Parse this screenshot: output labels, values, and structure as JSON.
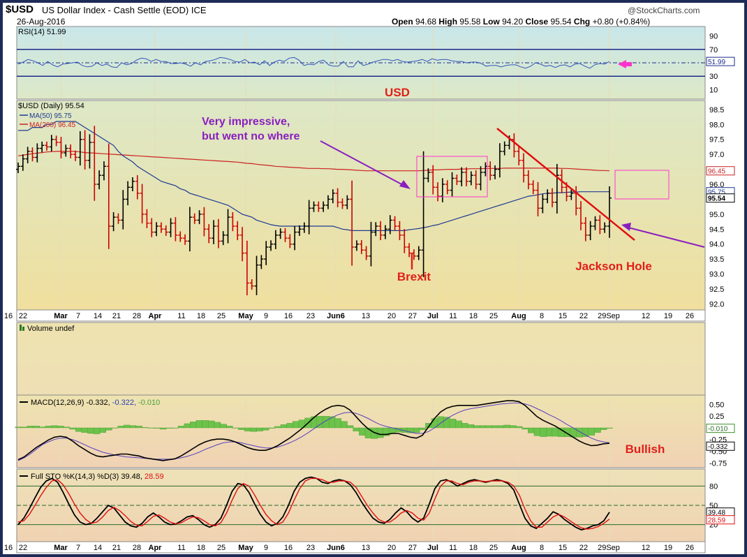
{
  "header": {
    "symbol": "$USD",
    "description": "US Dollar Index - Cash Settle (EOD) ICE",
    "date": "26-Aug-2016",
    "watermark": "@StockCharts.com",
    "open_label": "Open",
    "open": "94.68",
    "high_label": "High",
    "high": "95.58",
    "low_label": "Low",
    "low": "94.20",
    "close_label": "Close",
    "close": "95.54",
    "chg_label": "Chg",
    "chg": "+0.80 (+0.84%)"
  },
  "annotations": {
    "usd": "USD",
    "impressive_1": "Very impressive,",
    "impressive_2": "but went no where",
    "brexit": "Brexit",
    "jackson": "Jackson Hole",
    "bullish": "Bullish"
  },
  "colors": {
    "up_bar": "#000000",
    "down_bar": "#cc0000",
    "ma50": "#1f3a93",
    "ma200": "#cc2222",
    "annotation_red": "#e0201a",
    "annotation_purple": "#8a1fbf",
    "annotation_magenta": "#ff33cc",
    "histogram": "#6cc24a"
  },
  "chart_data": [
    {
      "type": "line",
      "name": "RSI panel",
      "legend": "RSI(14) 51.99",
      "ylim": [
        0,
        100
      ],
      "ticks": [
        90,
        70,
        50,
        30,
        10
      ],
      "levels": [
        70,
        30
      ],
      "last_value": "51.99",
      "rsi": [
        48,
        51,
        55,
        53,
        50,
        46,
        52,
        47,
        44,
        48,
        49,
        50,
        51,
        46,
        44,
        45,
        50,
        46,
        48,
        44,
        43,
        50,
        47,
        49,
        54,
        57,
        56,
        52,
        55,
        52,
        52,
        49,
        49,
        50,
        48,
        45,
        50,
        47,
        52,
        53,
        55,
        58,
        57,
        55,
        52,
        51,
        55,
        50,
        51,
        47,
        53,
        46,
        51,
        54,
        52,
        57,
        58,
        54,
        46,
        48,
        47,
        52,
        54,
        47,
        45,
        45,
        52,
        44,
        44,
        53,
        46,
        48,
        51,
        53,
        55,
        55,
        53,
        55,
        52,
        51,
        52,
        53,
        55,
        52,
        56,
        54,
        55,
        55,
        53,
        52,
        52,
        50,
        51,
        51,
        49,
        45,
        46,
        46,
        44,
        46,
        47,
        47,
        44,
        42,
        45,
        50,
        48,
        45,
        46,
        43,
        46,
        47,
        44,
        48,
        49,
        45,
        42,
        47,
        49,
        48,
        52
      ]
    },
    {
      "type": "ohlc",
      "name": "Price panel",
      "legend": "$USD (Daily) 95.54",
      "ma50_label": "MA(50) 95.75",
      "ma200_label": "MA(200) 96.45",
      "ylim": [
        91.8,
        98.8
      ],
      "ticks": [
        "98.5",
        "98.0",
        "97.5",
        "97.0",
        "96.5",
        "96.0",
        "95.5",
        "95.0",
        "94.5",
        "94.0",
        "93.5",
        "93.0",
        "92.5",
        "92.0"
      ],
      "last_ma200": "96.45",
      "last_ma50": "95.75",
      "last_close": "95.54",
      "x_labels": [
        "16",
        "22",
        "Mar",
        "7",
        "14",
        "21",
        "28",
        "Apr",
        "11",
        "18",
        "25",
        "May",
        "9",
        "16",
        "23",
        "Jun6",
        "13",
        "20",
        "27",
        "Jul",
        "11",
        "18",
        "25",
        "Aug",
        "8",
        "15",
        "22",
        "29Sep",
        "12",
        "19",
        "26"
      ],
      "closes": [
        96.6,
        96.85,
        97.1,
        96.9,
        97.2,
        97.3,
        97.25,
        97.5,
        97.4,
        97.05,
        97.2,
        97.0,
        96.9,
        97.5,
        96.8,
        97.4,
        96.0,
        96.3,
        96.6,
        94.6,
        94.9,
        94.8,
        95.5,
        95.9,
        96.1,
        95.7,
        95.0,
        94.7,
        94.4,
        94.6,
        94.5,
        94.4,
        94.7,
        94.3,
        94.2,
        94.1,
        94.9,
        94.8,
        95.0,
        94.5,
        94.2,
        94.6,
        94.1,
        94.3,
        94.9,
        94.6,
        94.3,
        93.7,
        92.7,
        92.6,
        93.3,
        93.5,
        93.9,
        94.0,
        94.3,
        94.4,
        94.2,
        94.0,
        94.4,
        94.5,
        94.6,
        95.2,
        95.3,
        95.2,
        95.3,
        95.5,
        95.7,
        95.4,
        95.3,
        95.5,
        93.9,
        94.0,
        93.8,
        93.6,
        94.4,
        94.6,
        94.3,
        94.5,
        94.8,
        94.6,
        94.3,
        93.9,
        93.7,
        93.6,
        93.8,
        96.2,
        96.4,
        95.9,
        95.6,
        96.0,
        95.8,
        96.2,
        96.1,
        96.4,
        96.1,
        96.3,
        96.0,
        96.4,
        96.6,
        96.3,
        96.5,
        97.1,
        97.3,
        97.5,
        97.1,
        96.8,
        96.3,
        96.0,
        95.8,
        95.2,
        95.5,
        95.7,
        95.4,
        96.3,
        95.9,
        95.6,
        95.7,
        95.2,
        94.7,
        94.3,
        94.6,
        94.8,
        94.5,
        94.6,
        95.54
      ],
      "ma50": [
        97.8,
        97.8,
        97.8,
        97.9,
        97.9,
        97.9,
        98.0,
        98.0,
        98.1,
        98.1,
        98.1,
        98.1,
        98.1,
        98.0,
        97.9,
        97.8,
        97.7,
        97.6,
        97.5,
        97.4,
        97.3,
        97.1,
        96.95,
        96.85,
        96.75,
        96.6,
        96.5,
        96.4,
        96.3,
        96.2,
        96.1,
        96.05,
        96.0,
        95.95,
        95.85,
        95.8,
        95.7,
        95.65,
        95.6,
        95.55,
        95.5,
        95.45,
        95.4,
        95.35,
        95.3,
        95.2,
        95.1,
        95.0,
        94.95,
        94.9,
        94.8,
        94.75,
        94.7,
        94.65,
        94.62,
        94.6,
        94.6,
        94.6,
        94.6,
        94.6,
        94.6,
        94.6,
        94.6,
        94.6,
        94.6,
        94.6,
        94.6,
        94.55,
        94.5,
        94.48,
        94.45,
        94.45,
        94.45,
        94.45,
        94.45,
        94.45,
        94.45,
        94.45,
        94.45,
        94.45,
        94.45,
        94.45,
        94.48,
        94.5,
        94.52,
        94.55,
        94.58,
        94.62,
        94.65,
        94.7,
        94.75,
        94.8,
        94.85,
        94.9,
        94.95,
        95.0,
        95.05,
        95.1,
        95.15,
        95.2,
        95.25,
        95.3,
        95.35,
        95.4,
        95.45,
        95.5,
        95.55,
        95.6,
        95.62,
        95.65,
        95.68,
        95.7,
        95.7,
        95.72,
        95.72,
        95.73,
        95.74,
        95.74,
        95.75,
        95.75,
        95.75,
        95.75,
        95.75,
        95.75,
        95.75
      ],
      "ma200": [
        96.95,
        96.97,
        97.0,
        97.02,
        97.04,
        97.06,
        97.08,
        97.09,
        97.1,
        97.1,
        97.1,
        97.1,
        97.1,
        97.08,
        97.06,
        97.05,
        97.04,
        97.03,
        97.02,
        97.01,
        97.0,
        96.99,
        96.98,
        96.97,
        96.96,
        96.95,
        96.94,
        96.93,
        96.92,
        96.91,
        96.9,
        96.89,
        96.88,
        96.87,
        96.86,
        96.85,
        96.84,
        96.83,
        96.82,
        96.81,
        96.8,
        96.79,
        96.78,
        96.77,
        96.76,
        96.75,
        96.74,
        96.72,
        96.7,
        96.69,
        96.67,
        96.65,
        96.64,
        96.62,
        96.6,
        96.59,
        96.58,
        96.57,
        96.56,
        96.55,
        96.54,
        96.53,
        96.53,
        96.53,
        96.52,
        96.52,
        96.51,
        96.5,
        96.5,
        96.49,
        96.48,
        96.47,
        96.46,
        96.45,
        96.45,
        96.45,
        96.45,
        96.45,
        96.45,
        96.45,
        96.45,
        96.45,
        96.45,
        96.45,
        96.45,
        96.46,
        96.47,
        96.48,
        96.48,
        96.49,
        96.5,
        96.5,
        96.5,
        96.51,
        96.51,
        96.52,
        96.52,
        96.52,
        96.53,
        96.53,
        96.53,
        96.53,
        96.54,
        96.54,
        96.54,
        96.54,
        96.54,
        96.54,
        96.54,
        96.54,
        96.54,
        96.54,
        96.54,
        96.54,
        96.53,
        96.53,
        96.52,
        96.51,
        96.5,
        96.49,
        96.48,
        96.47,
        96.46,
        96.46,
        96.45
      ]
    },
    {
      "type": "bar",
      "name": "Volume panel",
      "legend": "Volume undef",
      "values": []
    },
    {
      "type": "line",
      "name": "MACD panel",
      "legend_label": "MACD(12,26,9)",
      "legend_macd": "-0.332",
      "legend_signal": "-0.322",
      "legend_hist": "-0.010",
      "ylim": [
        -0.85,
        0.7
      ],
      "ticks": [
        "0.50",
        "0.25",
        "0.00",
        "-0.25",
        "-0.50",
        "-0.75"
      ],
      "last_hist": "-0.010",
      "last_macd": "-0.332",
      "macd": [
        -0.68,
        -0.62,
        -0.52,
        -0.42,
        -0.34,
        -0.26,
        -0.2,
        -0.18,
        -0.2,
        -0.28,
        -0.38,
        -0.46,
        -0.54,
        -0.6,
        -0.62,
        -0.6,
        -0.58,
        -0.56,
        -0.56,
        -0.58,
        -0.6,
        -0.64,
        -0.66,
        -0.68,
        -0.7,
        -0.68,
        -0.66,
        -0.6,
        -0.52,
        -0.44,
        -0.36,
        -0.3,
        -0.26,
        -0.24,
        -0.24,
        -0.26,
        -0.3,
        -0.36,
        -0.42,
        -0.46,
        -0.48,
        -0.48,
        -0.44,
        -0.38,
        -0.3,
        -0.22,
        -0.12,
        -0.02,
        0.1,
        0.22,
        0.32,
        0.4,
        0.46,
        0.48,
        0.46,
        0.38,
        0.24,
        0.1,
        -0.02,
        -0.1,
        -0.14,
        -0.14,
        -0.12,
        -0.12,
        -0.16,
        -0.2,
        -0.22,
        -0.16,
        0.02,
        0.2,
        0.34,
        0.42,
        0.46,
        0.48,
        0.48,
        0.48,
        0.48,
        0.5,
        0.52,
        0.54,
        0.56,
        0.58,
        0.58,
        0.56,
        0.48,
        0.36,
        0.24,
        0.16,
        0.1,
        0.04,
        -0.04,
        -0.12,
        -0.2,
        -0.28,
        -0.34,
        -0.38,
        -0.37,
        -0.34,
        -0.33
      ],
      "signal": [
        -0.7,
        -0.64,
        -0.56,
        -0.46,
        -0.36,
        -0.3,
        -0.25,
        -0.22,
        -0.22,
        -0.25,
        -0.3,
        -0.36,
        -0.42,
        -0.47,
        -0.52,
        -0.55,
        -0.58,
        -0.6,
        -0.62,
        -0.63,
        -0.64,
        -0.65,
        -0.66,
        -0.67,
        -0.67,
        -0.67,
        -0.66,
        -0.64,
        -0.61,
        -0.57,
        -0.52,
        -0.46,
        -0.41,
        -0.36,
        -0.32,
        -0.3,
        -0.3,
        -0.32,
        -0.35,
        -0.38,
        -0.41,
        -0.43,
        -0.43,
        -0.41,
        -0.37,
        -0.32,
        -0.26,
        -0.19,
        -0.11,
        -0.02,
        0.07,
        0.15,
        0.22,
        0.28,
        0.32,
        0.33,
        0.31,
        0.26,
        0.2,
        0.13,
        0.07,
        0.03,
        0.0,
        -0.03,
        -0.06,
        -0.09,
        -0.12,
        -0.12,
        -0.08,
        0.0,
        0.1,
        0.19,
        0.27,
        0.33,
        0.38,
        0.41,
        0.43,
        0.45,
        0.47,
        0.49,
        0.51,
        0.52,
        0.53,
        0.53,
        0.51,
        0.47,
        0.41,
        0.35,
        0.28,
        0.22,
        0.15,
        0.07,
        0.0,
        -0.08,
        -0.15,
        -0.22,
        -0.27,
        -0.3,
        -0.32
      ],
      "histogram": [
        0.02,
        0.02,
        0.04,
        0.04,
        0.02,
        0.04,
        0.05,
        0.04,
        0.02,
        -0.03,
        -0.08,
        -0.1,
        -0.12,
        -0.13,
        -0.1,
        -0.05,
        0.0,
        0.04,
        0.06,
        0.05,
        0.04,
        0.01,
        0.0,
        -0.01,
        -0.03,
        -0.01,
        0.0,
        0.04,
        0.09,
        0.13,
        0.16,
        0.16,
        0.15,
        0.12,
        0.08,
        0.04,
        0.0,
        -0.04,
        -0.07,
        -0.08,
        -0.07,
        -0.05,
        -0.01,
        0.03,
        0.07,
        0.1,
        0.14,
        0.17,
        0.21,
        0.24,
        0.25,
        0.25,
        0.24,
        0.2,
        0.14,
        0.05,
        -0.07,
        -0.16,
        -0.22,
        -0.23,
        -0.21,
        -0.17,
        -0.12,
        -0.09,
        -0.1,
        -0.11,
        -0.1,
        -0.04,
        0.1,
        0.2,
        0.24,
        0.23,
        0.19,
        0.15,
        0.1,
        0.07,
        0.05,
        0.05,
        0.05,
        0.05,
        0.05,
        0.06,
        0.05,
        0.03,
        -0.03,
        -0.11,
        -0.17,
        -0.19,
        -0.18,
        -0.18,
        -0.19,
        -0.19,
        -0.2,
        -0.2,
        -0.19,
        -0.16,
        -0.1,
        -0.04,
        -0.01
      ]
    },
    {
      "type": "line",
      "name": "Stochastic panel",
      "legend_label": "Full STO %K(14,3) %D(3)",
      "legend_k": "39.48",
      "legend_d": "28.59",
      "ylim": [
        0,
        100
      ],
      "ticks": [
        80,
        50,
        20
      ],
      "levels": [
        80,
        20
      ],
      "last_k": "39.48",
      "last_d": "28.59",
      "k": [
        20,
        30,
        45,
        62,
        78,
        88,
        92,
        86,
        70,
        52,
        35,
        24,
        20,
        22,
        30,
        40,
        50,
        46,
        35,
        24,
        18,
        16,
        22,
        32,
        38,
        32,
        24,
        20,
        21,
        26,
        32,
        34,
        28,
        20,
        16,
        20,
        30,
        50,
        72,
        84,
        82,
        70,
        52,
        36,
        24,
        18,
        22,
        32,
        50,
        72,
        86,
        92,
        94,
        92,
        86,
        84,
        88,
        90,
        88,
        82,
        70,
        55,
        42,
        30,
        24,
        22,
        28,
        38,
        46,
        40,
        30,
        24,
        30,
        52,
        76,
        88,
        90,
        86,
        80,
        84,
        88,
        90,
        88,
        86,
        88,
        90,
        88,
        84,
        74,
        52,
        30,
        18,
        14,
        22,
        30,
        40,
        36,
        28,
        22,
        16,
        12,
        14,
        18,
        20,
        26,
        39.48
      ],
      "d": [
        24,
        26,
        36,
        50,
        65,
        78,
        88,
        90,
        82,
        68,
        52,
        38,
        28,
        22,
        24,
        32,
        42,
        47,
        42,
        34,
        25,
        19,
        18,
        25,
        33,
        35,
        30,
        24,
        21,
        23,
        28,
        32,
        31,
        26,
        20,
        18,
        23,
        38,
        58,
        76,
        84,
        80,
        66,
        50,
        36,
        26,
        20,
        24,
        38,
        58,
        76,
        88,
        92,
        92,
        90,
        86,
        86,
        88,
        88,
        86,
        78,
        64,
        50,
        38,
        28,
        24,
        24,
        30,
        38,
        42,
        38,
        30,
        27,
        38,
        60,
        80,
        88,
        88,
        84,
        82,
        86,
        88,
        88,
        87,
        88,
        88,
        88,
        86,
        80,
        66,
        44,
        26,
        16,
        16,
        24,
        32,
        36,
        32,
        26,
        20,
        15,
        13,
        14,
        17,
        22,
        28.59
      ]
    }
  ]
}
